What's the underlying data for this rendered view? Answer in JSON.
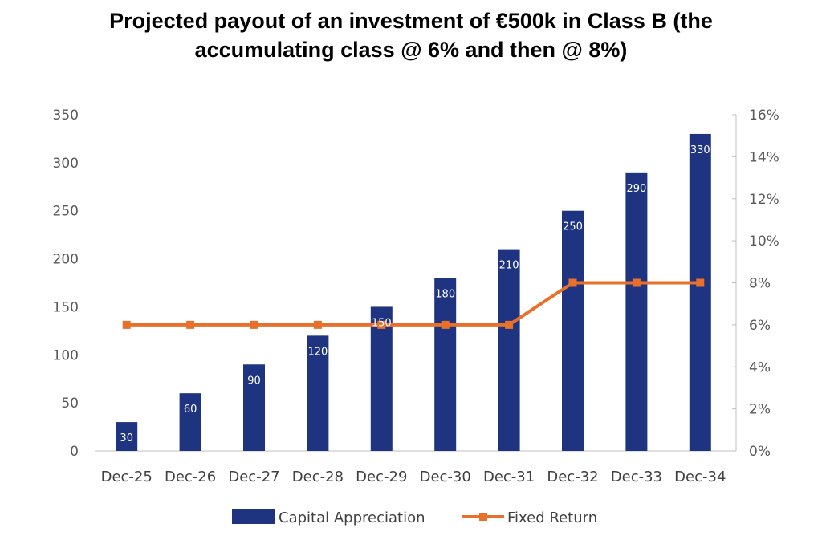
{
  "chart_data": {
    "type": "bar",
    "title": "Projected payout of an investment of €500k in Class B (the accumulating class @ 6% and then @ 8%)",
    "title_line1": "Projected payout of an investment of €500k in Class B (the",
    "title_line2": "accumulating class @ 6% and then @ 8%)",
    "categories": [
      "Dec-25",
      "Dec-26",
      "Dec-27",
      "Dec-28",
      "Dec-29",
      "Dec-30",
      "Dec-31",
      "Dec-32",
      "Dec-33",
      "Dec-34"
    ],
    "series": [
      {
        "name": "Capital Appreciation",
        "type": "bar",
        "axis": "left",
        "color": "#1f3480",
        "values": [
          30,
          60,
          90,
          120,
          150,
          180,
          210,
          250,
          290,
          330
        ],
        "labels": [
          "30",
          "60",
          "90",
          "120",
          "150",
          "180",
          "210",
          "250",
          "290",
          "330"
        ]
      },
      {
        "name": "Fixed Return",
        "type": "line",
        "axis": "right",
        "color": "#e8702a",
        "values": [
          6,
          6,
          6,
          6,
          6,
          6,
          6,
          8,
          8,
          8
        ]
      }
    ],
    "y_left": {
      "min": 0,
      "max": 350,
      "ticks": [
        "0",
        "50",
        "100",
        "150",
        "200",
        "250",
        "300",
        "350"
      ],
      "tick_values": [
        0,
        50,
        100,
        150,
        200,
        250,
        300,
        350
      ]
    },
    "y_right": {
      "min": 0,
      "max": 16,
      "ticks": [
        "0%",
        "2%",
        "4%",
        "6%",
        "8%",
        "10%",
        "12%",
        "14%",
        "16%"
      ],
      "tick_values": [
        0,
        2,
        4,
        6,
        8,
        10,
        12,
        14,
        16
      ]
    },
    "axis_color": "#bfbfbf",
    "grid": false,
    "legend_position": "bottom"
  }
}
